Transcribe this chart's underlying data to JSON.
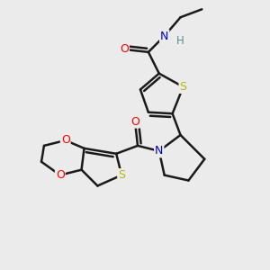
{
  "bg_color": "#ebebeb",
  "atom_colors": {
    "S": "#b8b800",
    "O": "#ff0000",
    "N": "#0000cc",
    "C": "#000000",
    "H": "#5a8a8a"
  },
  "bond_color": "#1a1a1a",
  "bond_width": 1.8,
  "figsize": [
    3.0,
    3.0
  ],
  "dpi": 100
}
